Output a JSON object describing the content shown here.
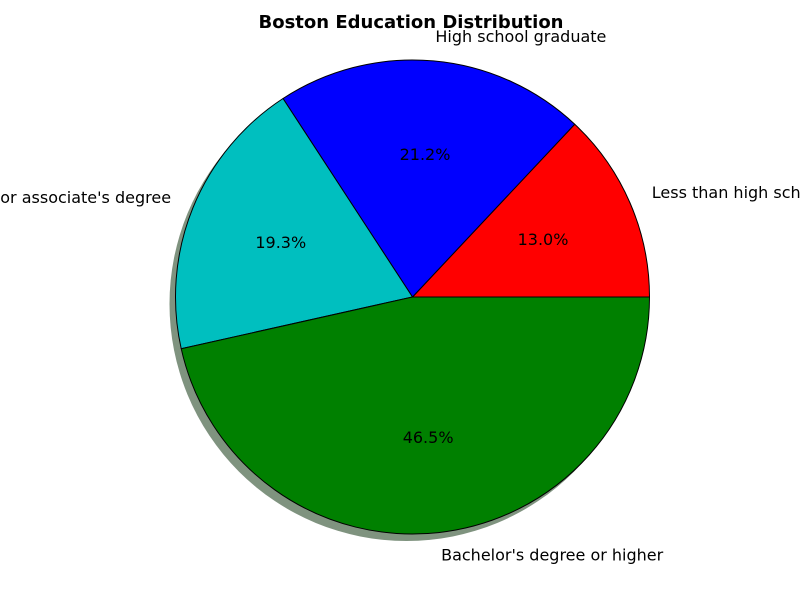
{
  "chart_data": {
    "type": "pie",
    "title": "Boston Education Distribution",
    "labels": [
      "Less than high school",
      "High school graduate",
      "Some college or associate's degree",
      "Bachelor's degree or higher"
    ],
    "values": [
      13.0,
      21.2,
      19.3,
      46.5
    ],
    "value_labels": [
      "13.0%",
      "21.2%",
      "19.3%",
      "46.5%"
    ],
    "colors": [
      "#ff0000",
      "#0000ff",
      "#00bfbf",
      "#008000"
    ],
    "shadow": true,
    "legend": "none"
  }
}
